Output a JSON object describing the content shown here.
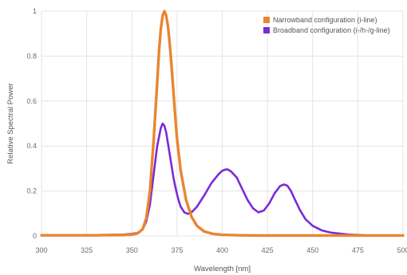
{
  "chart_data": {
    "type": "line",
    "title": "",
    "xlabel": "Wavelength [nm]",
    "ylabel": "Relative Spectral Power",
    "xlim": [
      300,
      500
    ],
    "ylim": [
      0,
      1
    ],
    "xticks": [
      "300",
      "325",
      "350",
      "375",
      "400",
      "425",
      "450",
      "475",
      "500"
    ],
    "yticks": [
      "0",
      "0.2",
      "0.4",
      "0.6",
      "0.8",
      "1"
    ],
    "grid": true,
    "legend_position": "top-right",
    "series": [
      {
        "name": "Narrowband configuration (i-line)",
        "color": "#e8862f",
        "x": [
          300,
          330,
          345,
          350,
          353,
          356,
          358,
          360,
          362,
          364,
          365,
          366,
          367,
          368,
          369,
          370,
          371,
          372,
          373,
          374,
          375,
          377,
          380,
          383,
          386,
          390,
          395,
          400,
          410,
          420,
          440,
          460,
          480,
          500
        ],
        "y": [
          0.003,
          0.003,
          0.004,
          0.006,
          0.011,
          0.03,
          0.08,
          0.2,
          0.42,
          0.68,
          0.82,
          0.92,
          0.98,
          1.0,
          0.98,
          0.93,
          0.85,
          0.75,
          0.64,
          0.53,
          0.43,
          0.29,
          0.16,
          0.085,
          0.045,
          0.02,
          0.009,
          0.005,
          0.003,
          0.002,
          0.002,
          0.002,
          0.002,
          0.002
        ]
      },
      {
        "name": "Broadband configuration (i-/h-/g-line)",
        "color": "#7b2bd6",
        "x": [
          300,
          330,
          345,
          350,
          354,
          356,
          358,
          360,
          362,
          364,
          366,
          367,
          368,
          369,
          370,
          371,
          372,
          373,
          374,
          375,
          376,
          377,
          379,
          381,
          383,
          386,
          390,
          394,
          398,
          400,
          402,
          403,
          405,
          408,
          411,
          414,
          417,
          420,
          423,
          426,
          429,
          432,
          434,
          436,
          438,
          440,
          443,
          446,
          450,
          455,
          460,
          470,
          480,
          490,
          500
        ],
        "y": [
          0.003,
          0.004,
          0.006,
          0.009,
          0.015,
          0.03,
          0.065,
          0.14,
          0.27,
          0.4,
          0.48,
          0.5,
          0.49,
          0.46,
          0.41,
          0.36,
          0.31,
          0.26,
          0.22,
          0.185,
          0.155,
          0.13,
          0.105,
          0.098,
          0.105,
          0.13,
          0.18,
          0.235,
          0.275,
          0.29,
          0.296,
          0.296,
          0.286,
          0.26,
          0.21,
          0.16,
          0.123,
          0.105,
          0.113,
          0.145,
          0.19,
          0.222,
          0.229,
          0.224,
          0.2,
          0.165,
          0.115,
          0.075,
          0.045,
          0.025,
          0.015,
          0.006,
          0.003,
          0.002,
          0.001
        ]
      }
    ]
  }
}
